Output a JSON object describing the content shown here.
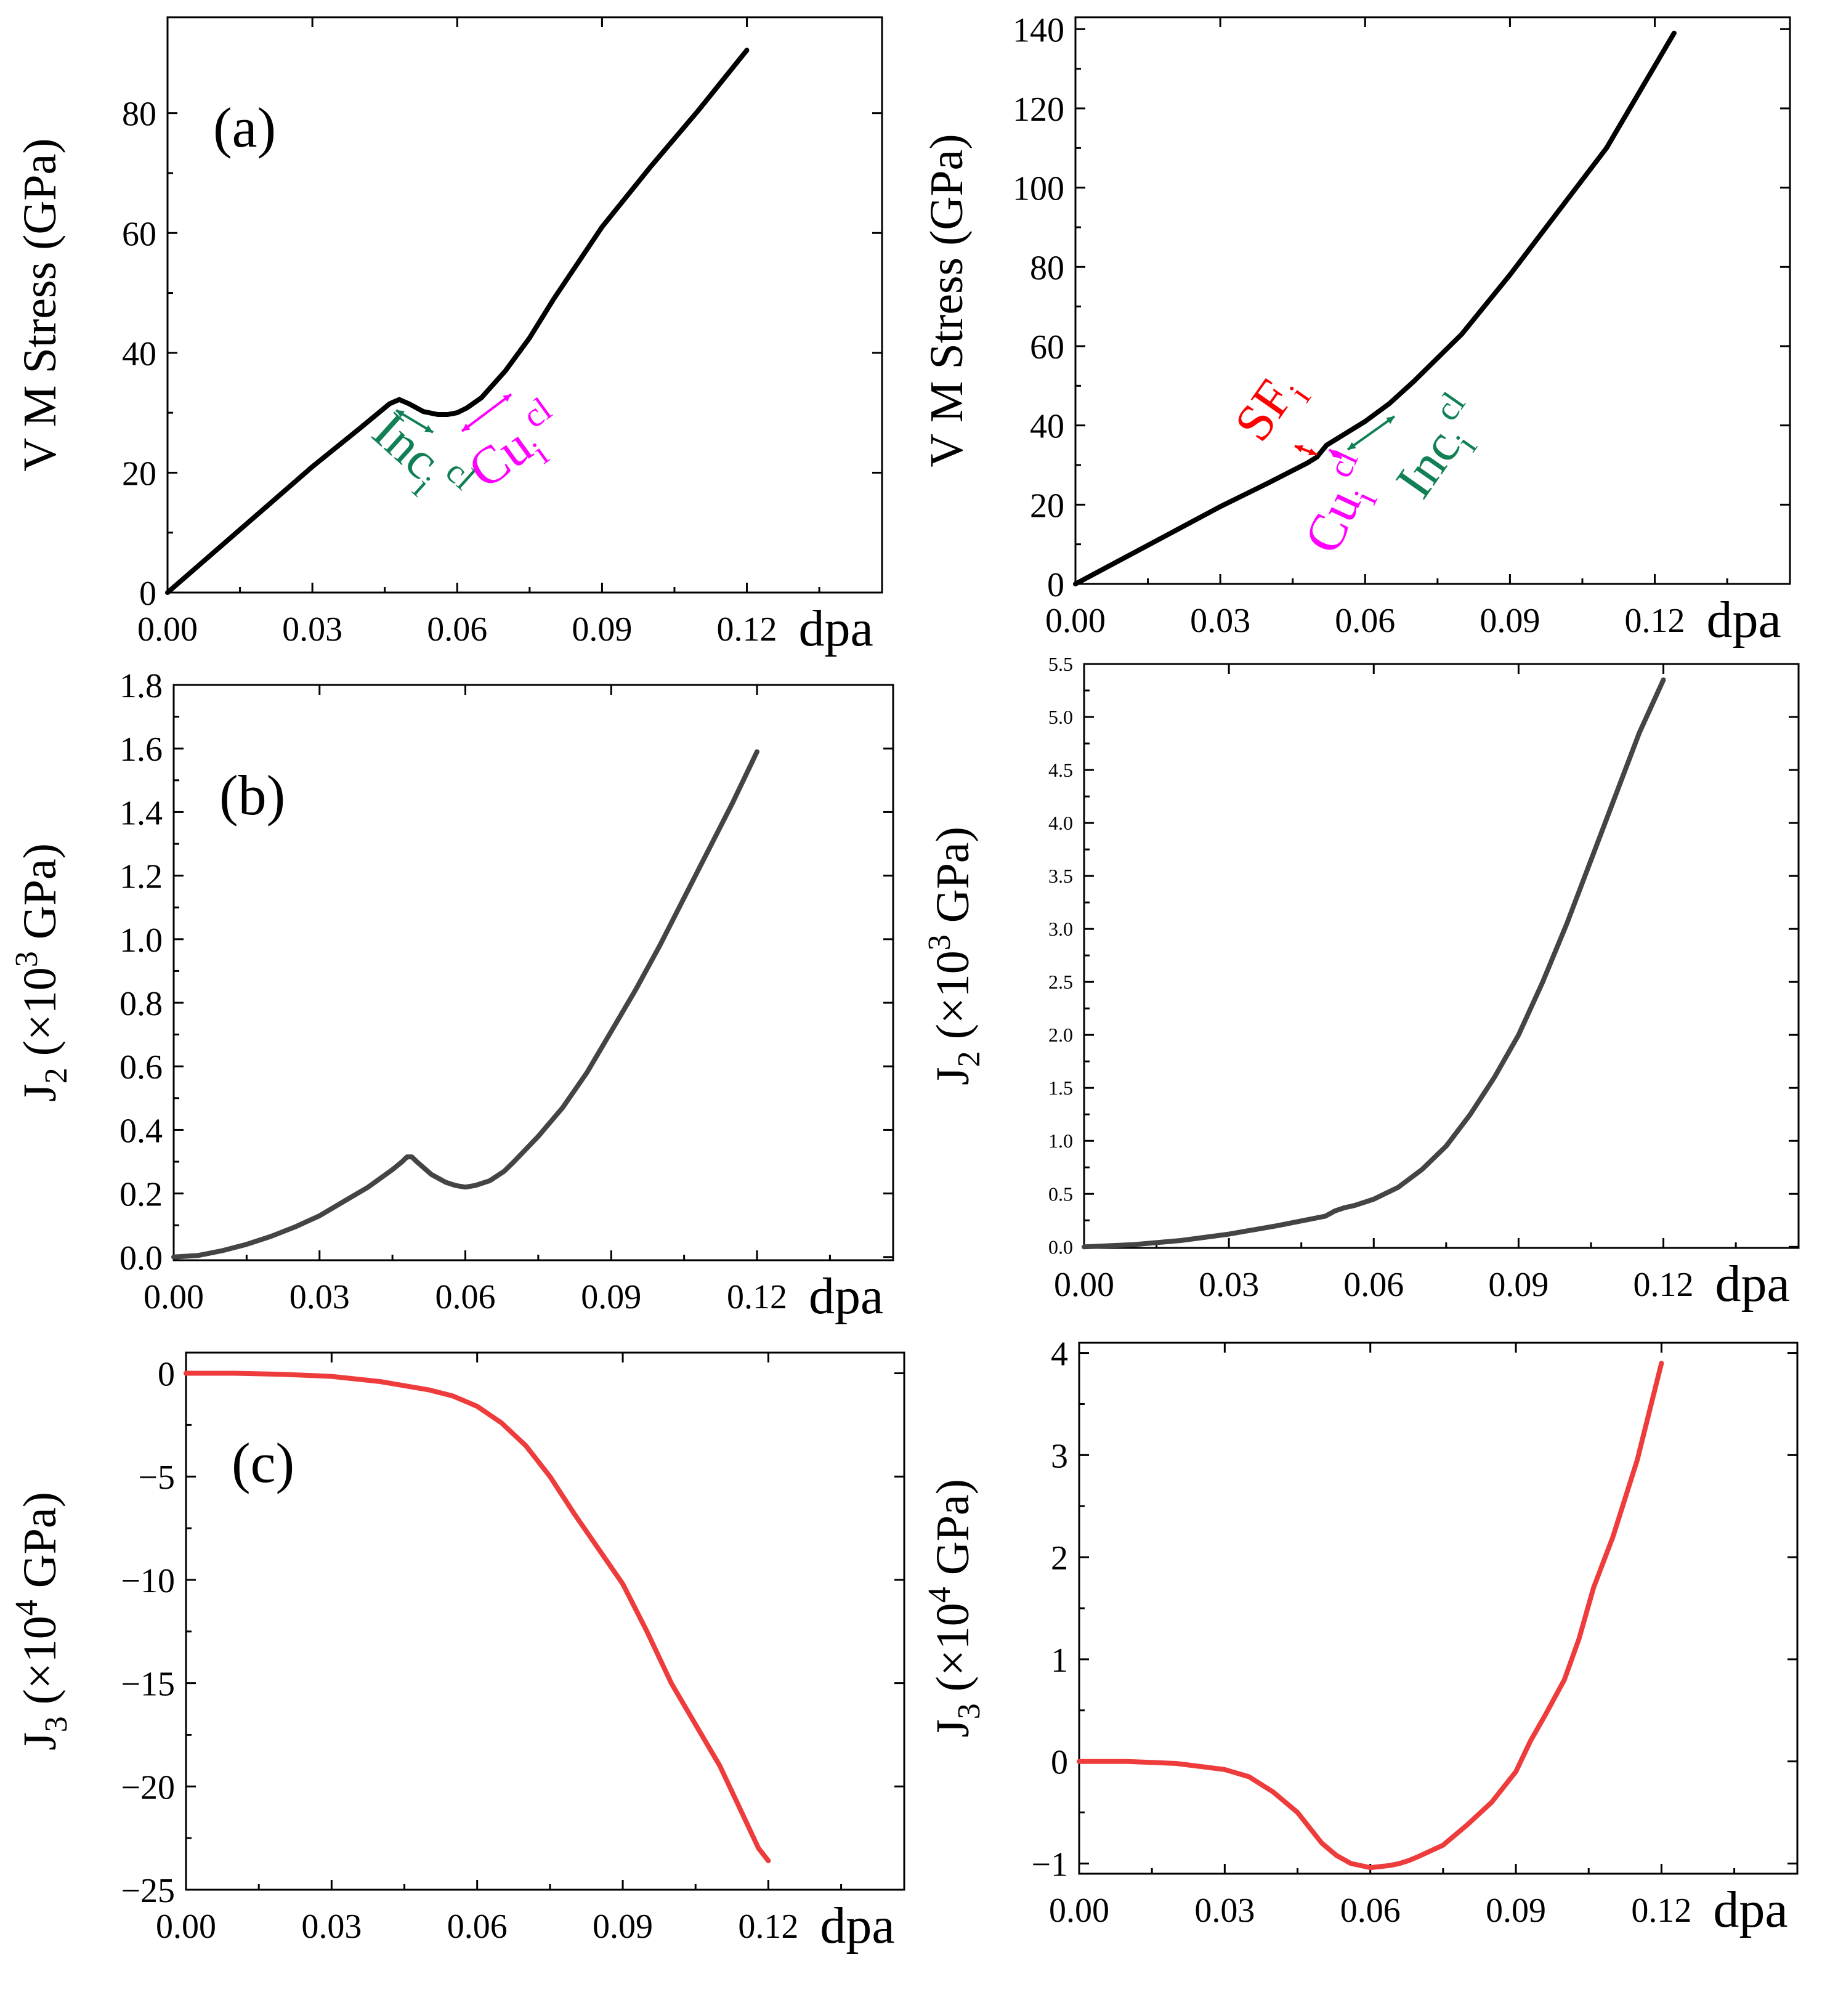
{
  "chart_data": [
    {
      "id": "a_left",
      "type": "line",
      "panel_label": "(a)",
      "xlabel": "dpa",
      "ylabel": "V M Stress (GPa)",
      "xlim": [
        0,
        0.148
      ],
      "ylim": [
        0,
        96
      ],
      "xticks": [
        "0.00",
        "0.03",
        "0.06",
        "0.09",
        "0.12"
      ],
      "yticks": [
        "0",
        "20",
        "40",
        "60",
        "80"
      ],
      "series": [
        {
          "name": "VM stress",
          "color": "#000000",
          "x": [
            0.0,
            0.01,
            0.02,
            0.03,
            0.04,
            0.046,
            0.048,
            0.05,
            0.053,
            0.056,
            0.058,
            0.06,
            0.062,
            0.065,
            0.07,
            0.075,
            0.08,
            0.09,
            0.1,
            0.11,
            0.12
          ],
          "y": [
            0,
            7,
            14,
            21,
            27.5,
            31.5,
            32.2,
            31.5,
            30.2,
            29.7,
            29.7,
            30.0,
            30.8,
            32.5,
            37,
            42.5,
            49,
            61,
            71,
            80.5,
            90.5
          ]
        }
      ],
      "annotations": [
        {
          "id": "inc",
          "base": "Inc",
          "sub": "i",
          "sup": "cl",
          "color": "#118055"
        },
        {
          "id": "cu",
          "base": "Cu",
          "sub": "i",
          "sup": "cl",
          "color": "#ff00ff"
        }
      ]
    },
    {
      "id": "a_right",
      "type": "line",
      "xlabel": "dpa",
      "ylabel": "V M Stress (GPa)",
      "xlim": [
        0,
        0.148
      ],
      "ylim": [
        0,
        143
      ],
      "xticks": [
        "0.00",
        "0.03",
        "0.06",
        "0.09",
        "0.12"
      ],
      "yticks": [
        "0",
        "20",
        "40",
        "60",
        "80",
        "100",
        "120",
        "140"
      ],
      "series": [
        {
          "name": "VM stress",
          "color": "#000000",
          "x": [
            0.0,
            0.01,
            0.02,
            0.03,
            0.04,
            0.048,
            0.05,
            0.052,
            0.054,
            0.056,
            0.06,
            0.065,
            0.07,
            0.08,
            0.09,
            0.1,
            0.11,
            0.124
          ],
          "y": [
            0,
            6.5,
            13,
            19.5,
            25.5,
            30.5,
            32,
            35,
            36.5,
            38,
            41,
            45.5,
            51,
            63,
            78,
            94,
            110,
            139
          ]
        }
      ],
      "annotations": [
        {
          "id": "sf",
          "base": "SF",
          "sub": "i",
          "sup": "",
          "color": "#ff0000"
        },
        {
          "id": "cu",
          "base": "Cu",
          "sub": "i",
          "sup": "cl",
          "color": "#ff00ff"
        },
        {
          "id": "inc",
          "base": "Inc",
          "sub": "i",
          "sup": "cl",
          "color": "#118055"
        }
      ]
    },
    {
      "id": "b_left",
      "type": "line",
      "panel_label": "(b)",
      "xlabel": "dpa",
      "ylabel": "J2 (×10^3 GPa)",
      "xlim": [
        0,
        0.148
      ],
      "ylim": [
        -0.01,
        1.8
      ],
      "xticks": [
        "0.00",
        "0.03",
        "0.06",
        "0.09",
        "0.12"
      ],
      "yticks": [
        "0.0",
        "0.2",
        "0.4",
        "0.6",
        "0.8",
        "1.0",
        "1.2",
        "1.4",
        "1.6",
        "1.8"
      ],
      "series": [
        {
          "name": "J2",
          "color": "#444444",
          "x": [
            0.0,
            0.005,
            0.01,
            0.015,
            0.02,
            0.025,
            0.03,
            0.035,
            0.04,
            0.045,
            0.047,
            0.048,
            0.049,
            0.05,
            0.053,
            0.056,
            0.058,
            0.06,
            0.062,
            0.065,
            0.068,
            0.07,
            0.075,
            0.08,
            0.085,
            0.09,
            0.095,
            0.1,
            0.105,
            0.11,
            0.115,
            0.12
          ],
          "y": [
            0.0,
            0.005,
            0.02,
            0.04,
            0.065,
            0.095,
            0.13,
            0.175,
            0.22,
            0.275,
            0.3,
            0.315,
            0.315,
            0.3,
            0.26,
            0.235,
            0.225,
            0.22,
            0.225,
            0.24,
            0.27,
            0.3,
            0.38,
            0.47,
            0.58,
            0.71,
            0.84,
            0.98,
            1.13,
            1.28,
            1.43,
            1.59
          ]
        }
      ]
    },
    {
      "id": "b_right",
      "type": "line",
      "xlabel": "dpa",
      "ylabel": "J2 (×10^3 GPa)",
      "xlim": [
        0,
        0.148
      ],
      "ylim": [
        -0.01,
        5.5
      ],
      "xticks": [
        "0.00",
        "0.03",
        "0.06",
        "0.09",
        "0.12"
      ],
      "yticks": [
        "0.0",
        "0.5",
        "1.0",
        "1.5",
        "2.0",
        "2.5",
        "3.0",
        "3.5",
        "4.0",
        "4.5",
        "5.0",
        "5.5"
      ],
      "series": [
        {
          "name": "J2",
          "color": "#444444",
          "x": [
            0.0,
            0.01,
            0.02,
            0.03,
            0.04,
            0.05,
            0.052,
            0.054,
            0.056,
            0.06,
            0.065,
            0.07,
            0.075,
            0.08,
            0.085,
            0.09,
            0.095,
            0.1,
            0.105,
            0.11,
            0.115,
            0.12
          ],
          "y": [
            0.0,
            0.02,
            0.06,
            0.12,
            0.2,
            0.29,
            0.34,
            0.37,
            0.39,
            0.45,
            0.56,
            0.73,
            0.95,
            1.25,
            1.6,
            2.0,
            2.5,
            3.05,
            3.65,
            4.25,
            4.85,
            5.35
          ]
        }
      ]
    },
    {
      "id": "c_left",
      "type": "line",
      "panel_label": "(c)",
      "xlabel": "dpa",
      "ylabel": "J3 (×10^4 GPa)",
      "xlim": [
        0,
        0.148
      ],
      "ylim": [
        -25,
        1
      ],
      "xticks": [
        "0.00",
        "0.03",
        "0.06",
        "0.09",
        "0.12"
      ],
      "yticks": [
        "0",
        "−5",
        "−10",
        "−15",
        "−20",
        "−25"
      ],
      "series": [
        {
          "name": "J3",
          "color": "#ee3c3c",
          "x": [
            0.0,
            0.01,
            0.02,
            0.03,
            0.04,
            0.045,
            0.05,
            0.055,
            0.06,
            0.065,
            0.07,
            0.075,
            0.08,
            0.085,
            0.09,
            0.095,
            0.1,
            0.105,
            0.11,
            0.112,
            0.115,
            0.118,
            0.12
          ],
          "y": [
            0.0,
            0.0,
            -0.05,
            -0.15,
            -0.4,
            -0.6,
            -0.8,
            -1.1,
            -1.6,
            -2.4,
            -3.5,
            -5.0,
            -6.8,
            -8.5,
            -10.2,
            -12.5,
            -15.0,
            -17.0,
            -19.0,
            -20.0,
            -21.5,
            -23.0,
            -23.6
          ]
        }
      ]
    },
    {
      "id": "c_right",
      "type": "line",
      "xlabel": "dpa",
      "ylabel": "J3 (×10^4 GPa)",
      "xlim": [
        0,
        0.148
      ],
      "ylim": [
        -1.1,
        4.1
      ],
      "xticks": [
        "0.00",
        "0.03",
        "0.06",
        "0.09",
        "0.12"
      ],
      "yticks": [
        "−1",
        "0",
        "1",
        "2",
        "3",
        "4"
      ],
      "series": [
        {
          "name": "J3",
          "color": "#ee3c3c",
          "x": [
            0.0,
            0.01,
            0.02,
            0.03,
            0.035,
            0.04,
            0.045,
            0.05,
            0.053,
            0.056,
            0.06,
            0.062,
            0.064,
            0.066,
            0.068,
            0.07,
            0.075,
            0.08,
            0.085,
            0.09,
            0.093,
            0.096,
            0.1,
            0.103,
            0.106,
            0.11,
            0.115,
            0.12
          ],
          "y": [
            0.0,
            0.0,
            -0.02,
            -0.08,
            -0.15,
            -0.3,
            -0.5,
            -0.8,
            -0.92,
            -1.0,
            -1.04,
            -1.03,
            -1.02,
            -1.0,
            -0.97,
            -0.93,
            -0.82,
            -0.62,
            -0.4,
            -0.1,
            0.2,
            0.45,
            0.8,
            1.2,
            1.7,
            2.2,
            2.95,
            3.9
          ]
        }
      ]
    }
  ]
}
